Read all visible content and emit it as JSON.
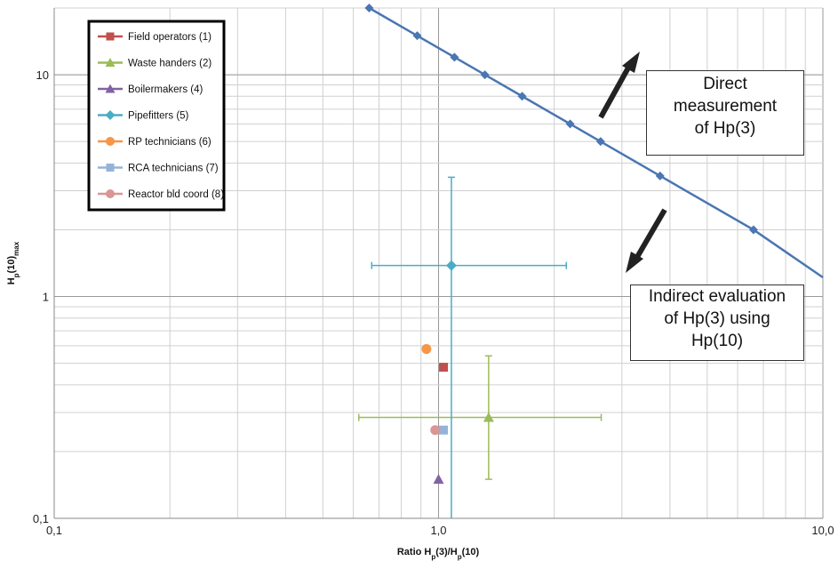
{
  "chart_data": {
    "type": "scatter",
    "x_scale": "log",
    "y_scale": "log",
    "xlabel": "Ratio H_p(3)/H_p(10)",
    "ylabel": "H_p(10)_max",
    "xlim": [
      0.1,
      10
    ],
    "ylim": [
      0.1,
      20
    ],
    "x_ticks": [
      "0,1",
      "1,0",
      "10,0"
    ],
    "y_ticks": [
      "0,1",
      "1",
      "10"
    ],
    "grid": true,
    "legend_position": "top-left",
    "reference_line": {
      "color": "#4a76b2",
      "points": [
        {
          "x": 0.66,
          "y": 20
        },
        {
          "x": 0.88,
          "y": 15
        },
        {
          "x": 1.1,
          "y": 12
        },
        {
          "x": 1.32,
          "y": 10
        },
        {
          "x": 1.65,
          "y": 8
        },
        {
          "x": 2.2,
          "y": 6
        },
        {
          "x": 2.64,
          "y": 5
        },
        {
          "x": 3.77,
          "y": 3.5
        },
        {
          "x": 6.6,
          "y": 2
        }
      ],
      "extend_to": {
        "x": 10,
        "y": 1.22
      }
    },
    "series": [
      {
        "name": "Field operators (1)",
        "color": "#c0504d",
        "marker": "square",
        "x": 1.03,
        "y": 0.48
      },
      {
        "name": "Waste handers (2)",
        "color": "#9bbb59",
        "marker": "triangle",
        "x": 1.35,
        "y": 0.285,
        "xerr": [
          0.62,
          2.65
        ],
        "yerr": [
          0.15,
          0.54
        ]
      },
      {
        "name": "Boilermakers (4)",
        "color": "#8064a2",
        "marker": "triangle",
        "x": 1.0,
        "y": 0.15
      },
      {
        "name": "Pipefitters (5)",
        "color": "#4bacc6",
        "marker": "diamond",
        "x": 1.08,
        "y": 1.38,
        "xerr": [
          0.67,
          2.15
        ],
        "yerr": [
          0.1,
          3.45
        ]
      },
      {
        "name": "RP technicians (6)",
        "color": "#f79646",
        "marker": "circle",
        "x": 0.93,
        "y": 0.58
      },
      {
        "name": "RCA technicians (7)",
        "color": "#95b3d7",
        "marker": "square",
        "x": 1.03,
        "y": 0.25
      },
      {
        "name": "Reactor bld coord (8)",
        "color": "#d99694",
        "marker": "circle",
        "x": 0.98,
        "y": 0.25
      }
    ]
  },
  "annotations": {
    "direct": {
      "line1": "Direct",
      "line2": "measurement",
      "line3": "of Hp(3)"
    },
    "indirect": {
      "line1": "Indirect evaluation",
      "line2": "of Hp(3) using",
      "line3": "Hp(10)"
    }
  }
}
